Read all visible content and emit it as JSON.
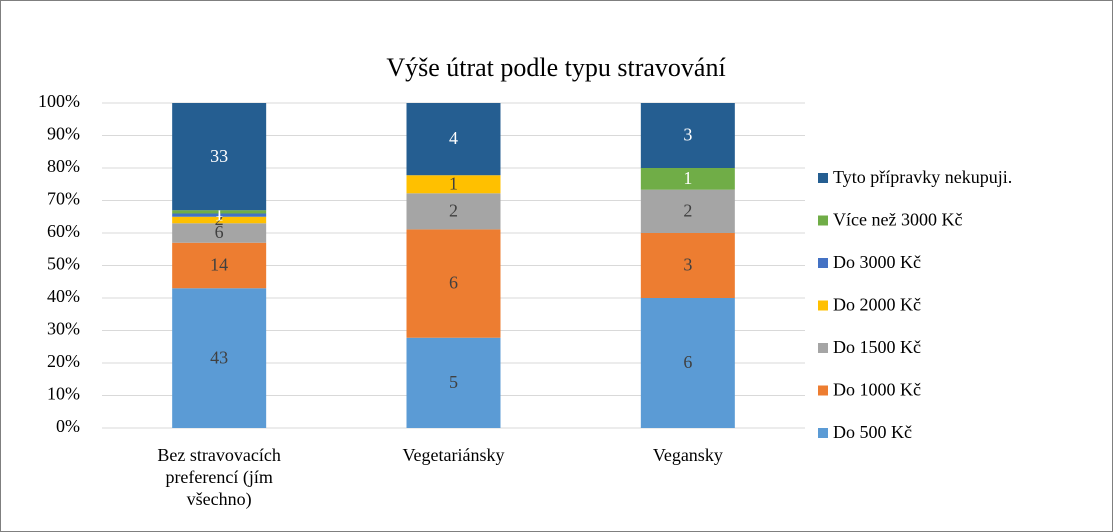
{
  "chart_data": {
    "type": "stacked_bar_100",
    "title": "Výše útrat podle typu stravování",
    "categories": [
      "Bez stravovacích preferencí (jím všechno)",
      "Vegetariánsky",
      "Vegansky"
    ],
    "series": [
      {
        "name": "Do 500 Kč",
        "color": "#5b9bd5",
        "values": [
          43,
          5,
          6
        ]
      },
      {
        "name": "Do 1000 Kč",
        "color": "#ed7d31",
        "values": [
          14,
          6,
          3
        ]
      },
      {
        "name": "Do 1500 Kč",
        "color": "#a5a5a5",
        "values": [
          6,
          2,
          2
        ]
      },
      {
        "name": "Do 2000 Kč",
        "color": "#ffc000",
        "values": [
          2,
          1,
          null
        ]
      },
      {
        "name": "Do 3000 Kč",
        "color": "#4472c4",
        "values": [
          1,
          null,
          null
        ]
      },
      {
        "name": "Více než 3000 Kč",
        "color": "#70ad47",
        "values": [
          1,
          null,
          1
        ]
      },
      {
        "name": "Tyto přípravky nekupuji.",
        "color": "#255e91",
        "values": [
          33,
          4,
          3
        ]
      }
    ],
    "ylim": [
      0,
      100
    ],
    "yticks": [
      {
        "value": 0,
        "label": "0%"
      },
      {
        "value": 10,
        "label": "10%"
      },
      {
        "value": 20,
        "label": "20%"
      },
      {
        "value": 30,
        "label": "30%"
      },
      {
        "value": 40,
        "label": "40%"
      },
      {
        "value": 50,
        "label": "50%"
      },
      {
        "value": 60,
        "label": "60%"
      },
      {
        "value": 70,
        "label": "70%"
      },
      {
        "value": 80,
        "label": "80%"
      },
      {
        "value": 90,
        "label": "90%"
      },
      {
        "value": 100,
        "label": "100%"
      }
    ],
    "grid": true,
    "legend": "right"
  }
}
